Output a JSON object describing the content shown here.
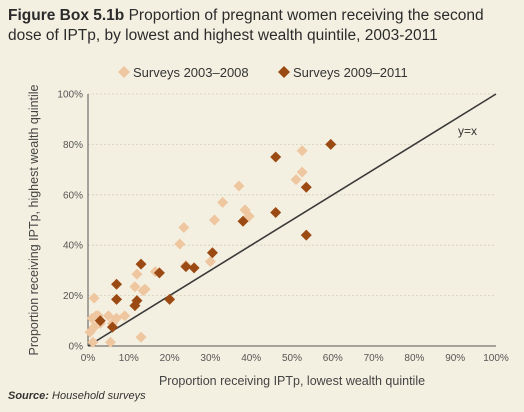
{
  "figure": {
    "title_lead": "Figure Box 5.1b",
    "title_rest": " Proportion of pregnant women receiving the second dose of IPTp, by lowest and highest wealth quintile, 2003-2011",
    "source_label": "Source:",
    "source_text": " Household surveys"
  },
  "colors": {
    "background": "#f4f0e1",
    "series_2003_2008": "#eec6a0",
    "series_2009_2011": "#9b4a14",
    "diagonal": "#3a3a3a"
  },
  "chart_data": {
    "type": "scatter",
    "xlabel": "Proportion receiving IPTp, lowest wealth quintile",
    "ylabel": "Proportion receiving IPTp, highest wealth quintile",
    "xlim": [
      0,
      100
    ],
    "ylim": [
      0,
      100
    ],
    "x_ticks": [
      "0%",
      "10%",
      "20%",
      "30%",
      "40%",
      "50%",
      "60%",
      "70%",
      "80%",
      "90%",
      "100%"
    ],
    "y_ticks": [
      "0%",
      "20%",
      "40%",
      "60%",
      "80%",
      "100%"
    ],
    "legend_position": "top",
    "reference_line": {
      "label": "y=x",
      "from": [
        0,
        0
      ],
      "to": [
        100,
        100
      ]
    },
    "series": [
      {
        "name": "Surveys 2003–2008",
        "marker": "diamond",
        "points": [
          [
            1.2,
            1.5
          ],
          [
            0.5,
            5.5
          ],
          [
            1.5,
            7.5
          ],
          [
            1,
            11
          ],
          [
            2,
            12
          ],
          [
            1.5,
            19
          ],
          [
            2.5,
            12
          ],
          [
            3,
            9
          ],
          [
            5.5,
            1.5
          ],
          [
            6,
            9
          ],
          [
            5,
            12
          ],
          [
            7,
            11
          ],
          [
            9,
            12
          ],
          [
            11.5,
            23.5
          ],
          [
            12,
            28.5
          ],
          [
            13,
            3.5
          ],
          [
            13.5,
            22
          ],
          [
            14,
            22.5
          ],
          [
            16.5,
            29.5
          ],
          [
            22.5,
            40.5
          ],
          [
            23.5,
            47
          ],
          [
            24,
            32
          ],
          [
            30,
            33.5
          ],
          [
            31,
            50
          ],
          [
            33,
            57
          ],
          [
            37,
            63.5
          ],
          [
            38.5,
            54
          ],
          [
            39.5,
            51.5
          ],
          [
            51,
            66
          ],
          [
            52.5,
            69
          ],
          [
            52.5,
            77.5
          ]
        ]
      },
      {
        "name": "Surveys 2009–2011",
        "marker": "diamond",
        "points": [
          [
            3,
            10
          ],
          [
            6,
            7.5
          ],
          [
            7,
            18.5
          ],
          [
            7,
            24.5
          ],
          [
            11.5,
            16
          ],
          [
            12,
            18
          ],
          [
            13,
            32.5
          ],
          [
            17.5,
            29
          ],
          [
            20,
            18.5
          ],
          [
            24,
            31.5
          ],
          [
            26,
            31
          ],
          [
            30.5,
            37
          ],
          [
            38,
            49.5
          ],
          [
            46,
            53
          ],
          [
            46,
            75
          ],
          [
            53.5,
            63
          ],
          [
            53.5,
            44
          ],
          [
            59.5,
            80
          ]
        ]
      }
    ]
  }
}
